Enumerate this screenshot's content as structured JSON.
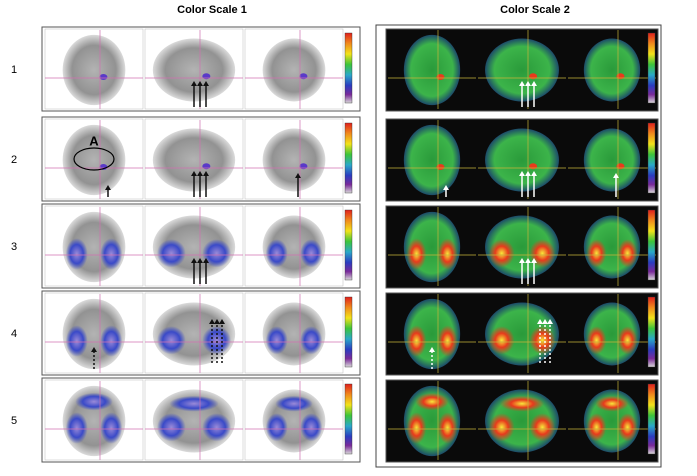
{
  "headers": [
    "Color Scale 1",
    "Color Scale 2"
  ],
  "rows": [
    {
      "label": "1"
    },
    {
      "label": "2"
    },
    {
      "label": "3"
    },
    {
      "label": "4"
    },
    {
      "label": "5"
    }
  ],
  "annotation": "A"
}
